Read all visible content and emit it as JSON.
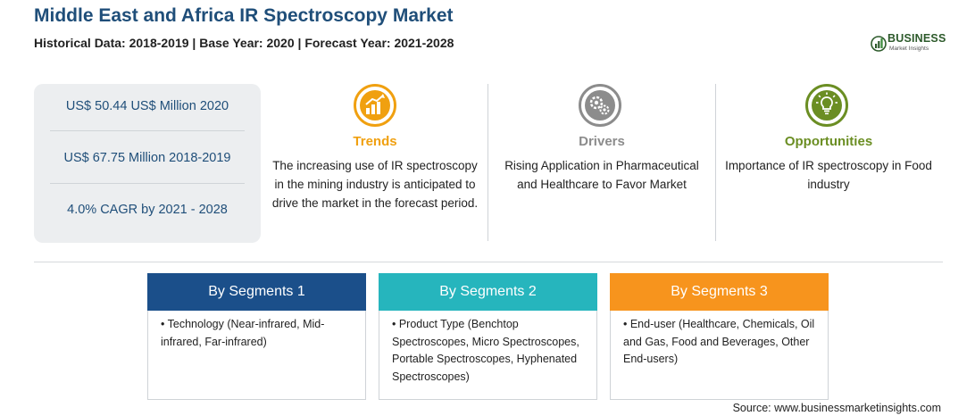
{
  "header": {
    "title": "Middle East and Africa IR Spectroscopy Market",
    "subtitle": "Historical Data: 2018-2019 | Base Year: 2020 | Forecast Year: 2021-2028"
  },
  "logo": {
    "name": "BUSINESS",
    "tagline": "Market Insights"
  },
  "stats": [
    {
      "text": "US$ 50.44 US$ Million 2020"
    },
    {
      "text": "US$ 67.75 Million 2018-2019"
    },
    {
      "text": "4.0% CAGR by 2021 - 2028"
    }
  ],
  "highlights": {
    "trends": {
      "icon": "trend-chart-icon",
      "heading": "Trends",
      "color": "#f0a010",
      "text": "The increasing use of IR spectroscopy in the mining industry is anticipated to drive the market in the forecast period."
    },
    "drivers": {
      "icon": "gears-icon",
      "heading": "Drivers",
      "color": "#8c8c8c",
      "text": "Rising Application in Pharmaceutical and Healthcare to Favor Market"
    },
    "opportunities": {
      "icon": "lightbulb-icon",
      "heading": "Opportunities",
      "color": "#6b8e23",
      "text": "Importance of IR spectroscopy in Food industry"
    }
  },
  "segments": [
    {
      "title": "By Segments 1",
      "color": "#1b4f8a",
      "text": "• Technology (Near-infrared, Mid-infrared, Far-infrared)"
    },
    {
      "title": "By Segments 2",
      "color": "#26b5bd",
      "text": "• Product Type (Benchtop Spectroscopes, Micro Spectroscopes, Portable Spectroscopes, Hyphenated Spectroscopes)"
    },
    {
      "title": "By Segments 3",
      "color": "#f7941d",
      "text": "• End-user (Healthcare, Chemicals, Oil and Gas, Food and Beverages, Other End-users)"
    }
  ],
  "footer": {
    "source": "Source: www.businessmarketinsights.com"
  }
}
